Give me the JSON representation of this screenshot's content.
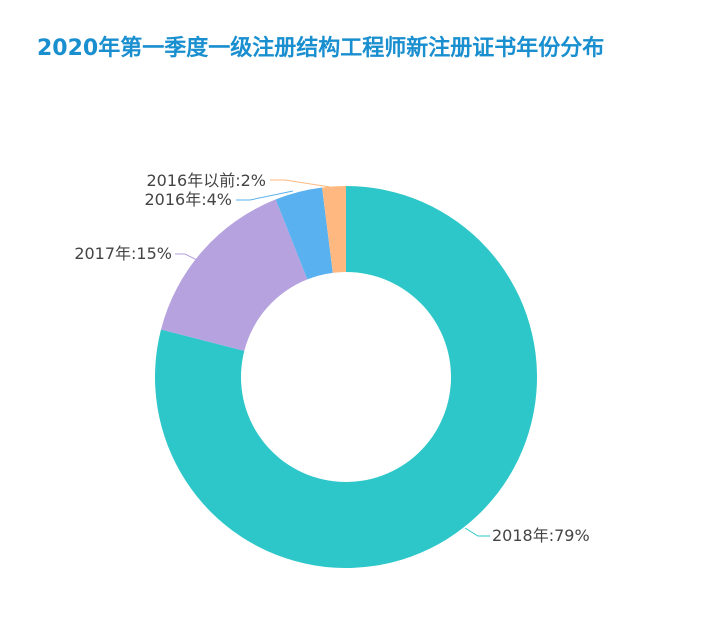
{
  "title": "2020年第一季度一级注册结构工程师新注册证书年份分布",
  "chart_data": {
    "type": "pie",
    "title": "2020年第一季度一级注册结构工程师新注册证书年份分布",
    "donut": true,
    "categories": [
      "2018年",
      "2017年",
      "2016年",
      "2016年以前"
    ],
    "values": [
      79,
      15,
      4,
      2
    ],
    "unit": "%",
    "colors": [
      "#2ec7c9",
      "#b6a2de",
      "#5ab1ef",
      "#ffb980"
    ],
    "labels": [
      "2018年:79%",
      "2017年:15%",
      "2016年:4%",
      "2016年以前:2%"
    ]
  },
  "colors": {
    "title": "#1a8fcf",
    "label": "#444444"
  }
}
